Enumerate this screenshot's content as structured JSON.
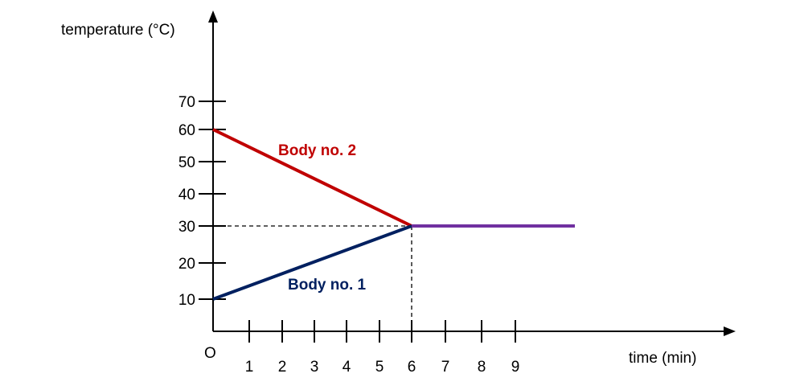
{
  "chart_data": {
    "type": "line",
    "ylabel": "temperature (°C)",
    "xlabel": "time (min)",
    "origin_label": "O",
    "x_ticks": [
      1,
      2,
      3,
      4,
      5,
      6,
      7,
      8,
      9
    ],
    "y_ticks": [
      10,
      20,
      30,
      40,
      50,
      60,
      70
    ],
    "series": [
      {
        "name": "Body no. 2",
        "color": "#c00000",
        "points": [
          [
            0,
            60
          ],
          [
            6,
            30
          ]
        ]
      },
      {
        "name": "Body no. 1",
        "color": "#002060",
        "points": [
          [
            0,
            10
          ],
          [
            6,
            30
          ]
        ]
      },
      {
        "name": "",
        "color": "#7030a0",
        "points": [
          [
            6,
            30
          ],
          [
            11,
            30
          ]
        ]
      }
    ],
    "guide_point": [
      6,
      30
    ],
    "grid": false
  }
}
